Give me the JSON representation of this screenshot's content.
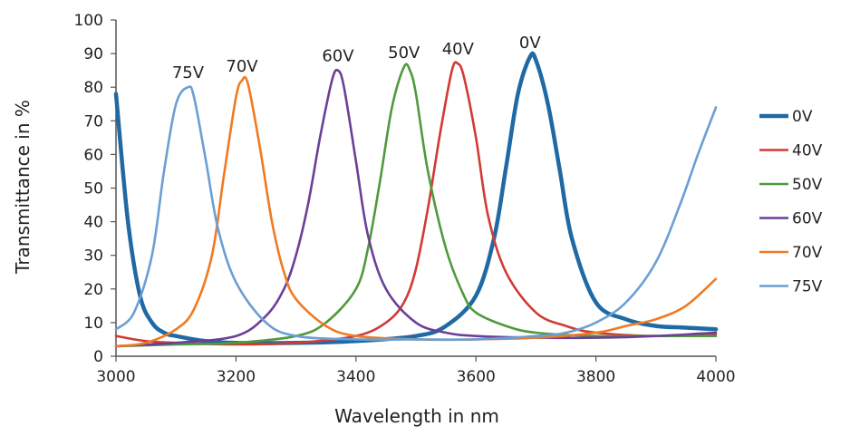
{
  "chart_data": {
    "type": "line",
    "title": "",
    "xlabel": "Wavelength in nm",
    "ylabel": "Transmittance in %",
    "xlim": [
      3000,
      4000
    ],
    "ylim": [
      0,
      100
    ],
    "xticks": [
      3000,
      3200,
      3400,
      3600,
      3800,
      4000
    ],
    "yticks": [
      0,
      10,
      20,
      30,
      40,
      50,
      60,
      70,
      80,
      90,
      100
    ],
    "grid": false,
    "legend_position": "right",
    "series": [
      {
        "name": "0V",
        "color": "#1f6aa5",
        "peak_label": "0V",
        "x": [
          3000,
          3020,
          3040,
          3060,
          3080,
          3100,
          3150,
          3200,
          3300,
          3400,
          3500,
          3550,
          3600,
          3630,
          3650,
          3670,
          3690,
          3700,
          3720,
          3740,
          3760,
          3800,
          3850,
          3900,
          3950,
          4000
        ],
        "y": [
          78,
          40,
          18,
          10,
          7,
          6,
          4.5,
          4,
          4,
          4.5,
          6,
          9,
          18,
          35,
          56,
          78,
          89,
          88,
          75,
          55,
          35,
          16,
          11,
          9,
          8.5,
          8
        ]
      },
      {
        "name": "40V",
        "color": "#d13a35",
        "peak_label": "40V",
        "x": [
          3000,
          3050,
          3100,
          3200,
          3300,
          3400,
          3450,
          3480,
          3500,
          3520,
          3540,
          3560,
          3570,
          3580,
          3600,
          3620,
          3650,
          3700,
          3750,
          3800,
          3900,
          4000
        ],
        "y": [
          6,
          4.5,
          4,
          3.5,
          4,
          6,
          10,
          16,
          26,
          44,
          66,
          85,
          87,
          83,
          65,
          42,
          25,
          13,
          9,
          7,
          6,
          6.5
        ]
      },
      {
        "name": "50V",
        "color": "#4f9a3c",
        "peak_label": "50V",
        "x": [
          3000,
          3100,
          3200,
          3300,
          3350,
          3400,
          3420,
          3440,
          3460,
          3480,
          3490,
          3500,
          3520,
          3550,
          3580,
          3600,
          3650,
          3700,
          3800,
          3900,
          4000
        ],
        "y": [
          3,
          3.5,
          4,
          6,
          10,
          20,
          32,
          52,
          74,
          86,
          85,
          78,
          55,
          32,
          18,
          13,
          9,
          7,
          6,
          6,
          6
        ]
      },
      {
        "name": "60V",
        "color": "#6b3f96",
        "peak_label": "60V",
        "x": [
          3000,
          3100,
          3200,
          3250,
          3280,
          3300,
          3320,
          3340,
          3360,
          3370,
          3380,
          3400,
          3420,
          3450,
          3500,
          3550,
          3600,
          3700,
          3800,
          3900,
          4000
        ],
        "y": [
          3,
          4,
          6,
          12,
          20,
          30,
          45,
          65,
          82,
          85,
          80,
          58,
          36,
          20,
          10,
          7,
          6,
          5.5,
          5.5,
          6,
          7
        ]
      },
      {
        "name": "70V",
        "color": "#f07a22",
        "peak_label": "70V",
        "x": [
          3000,
          3050,
          3100,
          3130,
          3160,
          3180,
          3200,
          3210,
          3220,
          3240,
          3260,
          3280,
          3300,
          3350,
          3400,
          3500,
          3600,
          3700,
          3800,
          3850,
          3900,
          3950,
          4000
        ],
        "y": [
          3,
          4,
          8,
          14,
          30,
          54,
          77,
          82,
          81,
          62,
          40,
          25,
          17,
          9,
          6,
          5,
          5,
          5.5,
          7,
          9,
          11,
          15,
          23
        ]
      },
      {
        "name": "75V",
        "color": "#6a9fd4",
        "peak_label": "75V",
        "x": [
          3000,
          3030,
          3060,
          3080,
          3100,
          3120,
          3130,
          3150,
          3170,
          3200,
          3250,
          3300,
          3400,
          3500,
          3600,
          3700,
          3750,
          3800,
          3850,
          3900,
          3940,
          3970,
          4000
        ],
        "y": [
          8,
          13,
          30,
          55,
          75,
          80,
          77,
          58,
          38,
          22,
          10,
          6,
          5,
          5,
          5,
          6,
          7,
          10,
          16,
          28,
          45,
          60,
          74
        ]
      }
    ]
  }
}
